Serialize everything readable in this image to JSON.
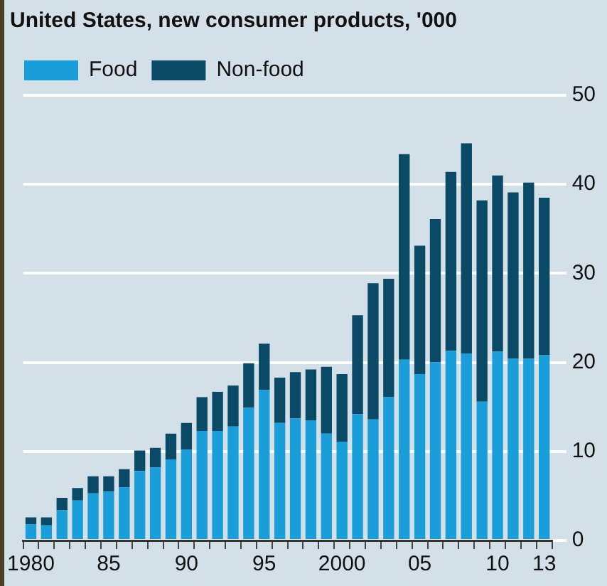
{
  "chart_data": {
    "type": "bar",
    "title": "United States, new consumer products, '000",
    "categories": [
      "1980",
      null,
      null,
      null,
      null,
      "85",
      null,
      null,
      null,
      null,
      "90",
      null,
      null,
      null,
      null,
      "95",
      null,
      null,
      null,
      null,
      "2000",
      null,
      null,
      null,
      null,
      "05",
      null,
      null,
      null,
      null,
      "10",
      null,
      null,
      "13"
    ],
    "series": [
      {
        "name": "Food",
        "color": "#1a9ed9",
        "values": [
          1.8,
          1.7,
          3.4,
          4.5,
          5.3,
          5.5,
          6.0,
          7.8,
          8.2,
          9.1,
          10.2,
          12.3,
          12.3,
          12.8,
          14.9,
          16.9,
          13.2,
          13.7,
          13.5,
          12.0,
          11.1,
          14.2,
          13.6,
          16.1,
          20.3,
          18.7,
          20.0,
          21.3,
          21.0,
          15.6,
          21.2,
          20.4,
          20.4,
          20.8
        ]
      },
      {
        "name": "Non-food",
        "color": "#0a4a66",
        "values": [
          0.8,
          0.9,
          1.4,
          1.4,
          1.9,
          1.7,
          2.0,
          2.3,
          2.2,
          2.9,
          3.0,
          3.8,
          4.4,
          4.6,
          5.0,
          5.2,
          5.1,
          5.2,
          5.7,
          7.5,
          7.6,
          11.1,
          15.3,
          13.3,
          23.1,
          14.4,
          16.1,
          20.1,
          23.6,
          22.6,
          19.8,
          18.7,
          19.8,
          17.7
        ]
      }
    ],
    "stacked": true,
    "ylim": [
      0,
      50
    ],
    "yticks": [
      0,
      10,
      20,
      30,
      40,
      50
    ],
    "grid": "y",
    "legend": "top left"
  }
}
